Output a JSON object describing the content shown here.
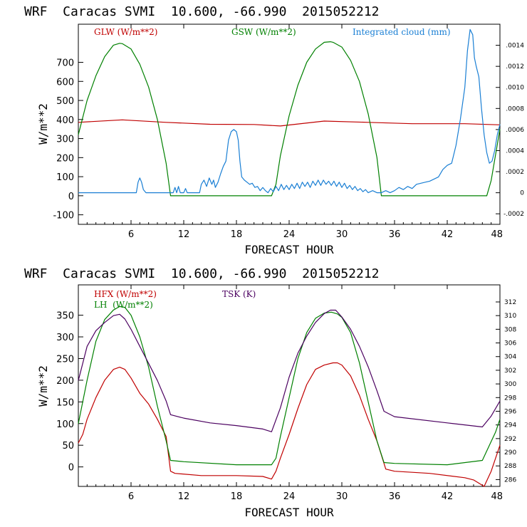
{
  "chart_data": [
    {
      "type": "line",
      "title": "WRF  Caracas SVMI  10.600, -66.990  2015052212",
      "xlabel": "FORECAST HOUR",
      "ylabel": "W/m**2",
      "xlim": [
        0,
        48
      ],
      "ylim": [
        -150,
        900
      ],
      "y2lim": [
        -0.0003,
        0.0016
      ],
      "xticks": [
        6,
        12,
        18,
        24,
        30,
        36,
        42,
        48
      ],
      "yticks": [
        -100,
        0,
        100,
        200,
        300,
        400,
        500,
        600,
        700
      ],
      "y2ticks": [
        -0.0002,
        0,
        0.0002,
        0.0004,
        0.0006,
        0.0008,
        0.001,
        0.0012,
        0.0014
      ],
      "y2tick_labels": [
        "-.0002",
        "0",
        ".0002",
        ".0004",
        ".0006",
        ".0008",
        ".0010",
        ".0012",
        ".0014"
      ],
      "series": [
        {
          "name": "GLW (W/m**2)",
          "color": "#c00000",
          "axis": "left",
          "x": [
            0,
            5,
            10,
            15,
            20,
            23,
            28,
            33,
            38,
            44,
            48
          ],
          "y": [
            385,
            398,
            385,
            375,
            374,
            366,
            392,
            385,
            378,
            378,
            372
          ]
        },
        {
          "name": "GSW (W/m**2)",
          "color": "#008000",
          "axis": "left",
          "x": [
            0,
            1,
            2,
            3,
            4,
            4.7,
            5,
            6,
            7,
            8,
            9,
            10,
            10.5,
            22,
            22.5,
            23,
            24,
            25,
            26,
            27,
            28,
            28.7,
            29,
            30,
            31,
            32,
            33,
            34,
            34.5,
            46.5,
            47,
            48
          ],
          "y": [
            320,
            500,
            630,
            730,
            790,
            800,
            798,
            770,
            690,
            570,
            400,
            170,
            0,
            0,
            60,
            210,
            420,
            580,
            700,
            770,
            805,
            808,
            805,
            780,
            710,
            600,
            430,
            200,
            0,
            0,
            80,
            350
          ]
        },
        {
          "name": "Integrated cloud (mm)",
          "color": "#1a7fd4",
          "axis": "right",
          "x": [
            0,
            6.6,
            6.8,
            7.0,
            7.2,
            7.4,
            7.7,
            8,
            10.8,
            11,
            11.2,
            11.4,
            11.6,
            12.0,
            12.2,
            12.4,
            13.8,
            14.0,
            14.3,
            14.6,
            14.9,
            15.2,
            15.4,
            15.6,
            15.9,
            16.2,
            16.5,
            16.8,
            17.1,
            17.4,
            17.7,
            18.0,
            18.2,
            18.4,
            18.6,
            18.9,
            19.2,
            19.5,
            19.8,
            20.1,
            20.4,
            20.7,
            21.0,
            21.3,
            21.6,
            21.9,
            22.2,
            22.5,
            22.8,
            23.1,
            23.4,
            23.7,
            24.0,
            24.3,
            24.6,
            24.9,
            25.2,
            25.5,
            25.8,
            26.1,
            26.4,
            26.7,
            27.0,
            27.3,
            27.6,
            27.9,
            28.2,
            28.5,
            28.8,
            29.1,
            29.4,
            29.7,
            30.0,
            30.3,
            30.6,
            30.9,
            31.2,
            31.5,
            31.8,
            32.1,
            32.4,
            32.7,
            33.0,
            33.5,
            34.0,
            34.5,
            35.0,
            35.5,
            36.0,
            36.5,
            37.0,
            37.5,
            38.0,
            38.5,
            39.0,
            39.5,
            40.0,
            40.5,
            41.0,
            41.5,
            42.0,
            42.5,
            43.0,
            43.5,
            44.0,
            44.3,
            44.6,
            44.9,
            45.1,
            45.3,
            45.6,
            45.9,
            46.2,
            46.5,
            46.8,
            47.1,
            47.4,
            47.7,
            48.0
          ],
          "y": [
            0,
            0,
            0.0001,
            0.00014,
            0.0001,
            3e-05,
            0,
            0,
            0,
            5e-05,
            0,
            6e-05,
            0,
            0,
            4e-05,
            0,
            0,
            8e-05,
            0.00012,
            6e-05,
            0.00014,
            8e-05,
            0.00012,
            5e-05,
            0.0001,
            0.00018,
            0.00025,
            0.0003,
            0.0005,
            0.00058,
            0.0006,
            0.00058,
            0.0005,
            0.0003,
            0.00015,
            0.00012,
            0.0001,
            8e-05,
            9e-05,
            5e-05,
            6e-05,
            2e-05,
            5e-05,
            2e-05,
            0,
            4e-05,
            1e-05,
            6e-05,
            2e-05,
            8e-05,
            3e-05,
            7e-05,
            3e-05,
            8e-05,
            4e-05,
            9e-05,
            4e-05,
            0.0001,
            6e-05,
            0.0001,
            5e-05,
            0.00011,
            7e-05,
            0.00012,
            7e-05,
            0.00012,
            8e-05,
            0.00011,
            7e-05,
            0.00011,
            6e-05,
            0.0001,
            5e-05,
            9e-05,
            4e-05,
            7e-05,
            3e-05,
            6e-05,
            2e-05,
            4e-05,
            1e-05,
            3e-05,
            0,
            2e-05,
            0,
            0,
            2e-05,
            0,
            2e-05,
            5e-05,
            3e-05,
            6e-05,
            4e-05,
            8e-05,
            9e-05,
            0.0001,
            0.00011,
            0.00013,
            0.00015,
            0.00022,
            0.00026,
            0.00028,
            0.00045,
            0.0007,
            0.001,
            0.00135,
            0.00155,
            0.0015,
            0.00128,
            0.0012,
            0.0011,
            0.0008,
            0.00055,
            0.00038,
            0.00028,
            0.0003,
            0.0004,
            0.00055,
            0.00065
          ]
        }
      ]
    },
    {
      "type": "line",
      "title": "WRF  Caracas SVMI  10.600, -66.990  2015052212",
      "xlabel": "FORECAST HOUR",
      "ylabel": "W/m**2",
      "xlim": [
        0,
        48
      ],
      "ylim": [
        -45,
        420
      ],
      "y2lim": [
        285,
        314.5
      ],
      "xticks": [
        6,
        12,
        18,
        24,
        30,
        36,
        42,
        48
      ],
      "yticks": [
        0,
        50,
        100,
        150,
        200,
        250,
        300,
        350
      ],
      "y2ticks": [
        286,
        288,
        290,
        292,
        294,
        296,
        298,
        300,
        302,
        304,
        306,
        308,
        310,
        312
      ],
      "series": [
        {
          "name": "HFX (W/m**2)",
          "color": "#c00000",
          "axis": "left",
          "x": [
            0,
            0.5,
            1,
            2,
            3,
            4,
            4.7,
            5.3,
            6,
            7,
            8,
            9,
            10,
            10.5,
            11,
            14,
            18,
            21,
            22,
            22.5,
            23,
            24,
            25,
            26,
            27,
            28,
            29,
            29.5,
            30,
            31,
            32,
            33,
            34,
            35,
            36,
            40,
            44,
            45,
            46.2,
            47,
            48
          ],
          "y": [
            55,
            75,
            110,
            160,
            200,
            225,
            230,
            225,
            205,
            170,
            145,
            110,
            70,
            -10,
            -15,
            -20,
            -20,
            -22,
            -28,
            -10,
            20,
            75,
            135,
            190,
            225,
            235,
            240,
            240,
            235,
            210,
            165,
            110,
            60,
            -5,
            -10,
            -15,
            -25,
            -30,
            -45,
            -10,
            50
          ]
        },
        {
          "name": "LH  (W/m**2)",
          "color": "#008000",
          "axis": "left",
          "x": [
            0,
            1,
            2,
            3,
            4,
            4.7,
            5.3,
            6,
            7,
            8,
            9,
            10,
            10.5,
            12,
            18,
            22,
            22.5,
            23,
            24,
            25,
            26,
            27,
            28,
            28.8,
            29.5,
            30,
            31,
            32,
            33,
            34,
            34.8,
            36,
            42,
            46,
            46.8,
            47.5,
            48
          ],
          "y": [
            100,
            200,
            290,
            340,
            362,
            370,
            368,
            350,
            300,
            230,
            140,
            60,
            15,
            12,
            5,
            5,
            20,
            70,
            160,
            250,
            310,
            343,
            355,
            357,
            353,
            345,
            310,
            240,
            150,
            60,
            10,
            8,
            5,
            15,
            50,
            80,
            110
          ]
        },
        {
          "name": "TSK (K)",
          "color": "#4b0060",
          "axis": "right",
          "x": [
            0,
            1,
            2,
            3,
            4,
            4.7,
            5.3,
            6,
            7,
            8,
            9,
            10,
            10.5,
            12,
            15,
            18,
            21,
            22,
            23,
            24,
            25,
            26,
            27,
            28,
            28.7,
            29.3,
            30,
            31,
            32,
            33,
            34,
            34.8,
            36,
            42,
            46,
            47,
            48
          ],
          "y": [
            300.5,
            305.5,
            307.8,
            309,
            310,
            310.2,
            309.5,
            308,
            305.5,
            303,
            300.5,
            297.5,
            295.5,
            295,
            294.3,
            293.9,
            293.4,
            293,
            296.5,
            301,
            304.5,
            307,
            309,
            310.3,
            310.8,
            310.8,
            309.8,
            308,
            305.5,
            302.5,
            299,
            296,
            295.2,
            294.3,
            293.7,
            295.3,
            297.5
          ]
        }
      ]
    }
  ]
}
